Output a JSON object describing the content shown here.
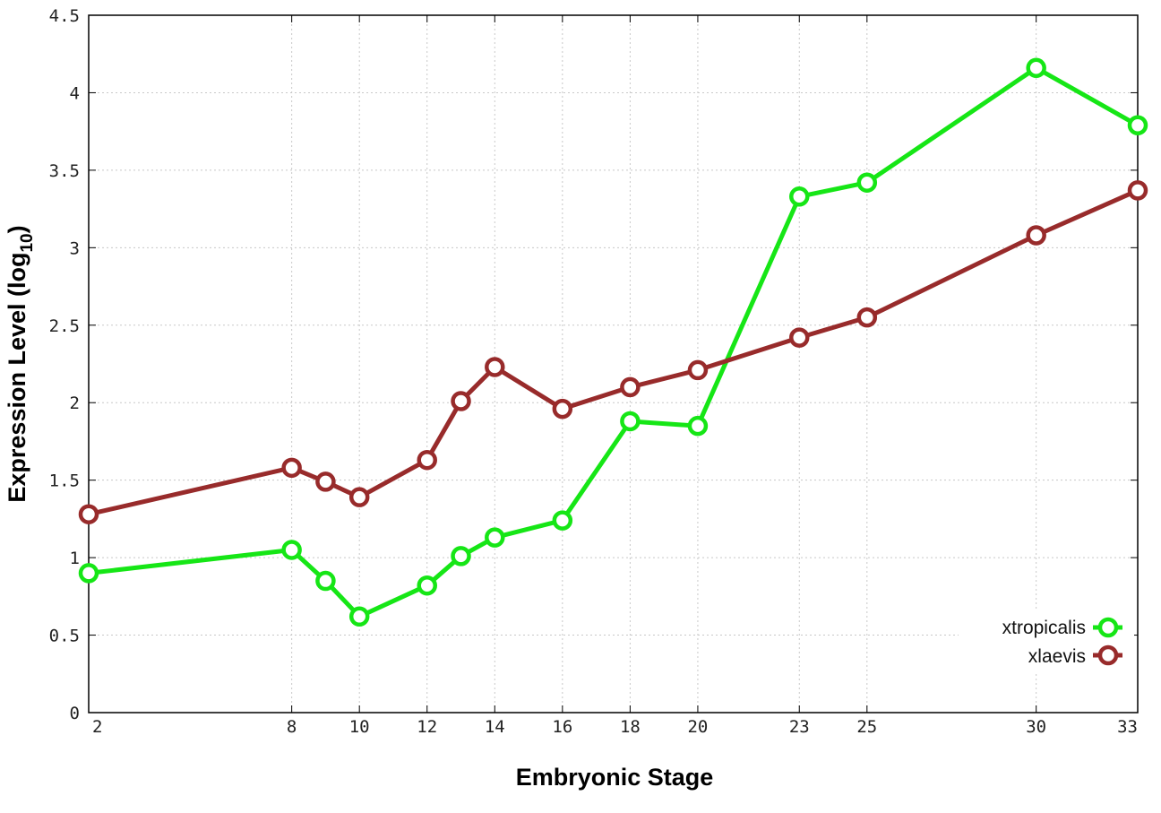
{
  "chart_data": {
    "type": "line",
    "xlabel": "Embryonic Stage",
    "ylabel_main": "Expression Level (log",
    "ylabel_sub": "10",
    "ylabel_close": ")",
    "ylim": [
      0,
      4.5
    ],
    "y_ticks": [
      "0",
      "0.5",
      "1",
      "1.5",
      "2",
      "2.5",
      "3",
      "3.5",
      "4",
      "4.5"
    ],
    "categories": [
      "2",
      "8",
      "9",
      "10",
      "12",
      "13",
      "14",
      "16",
      "18",
      "20",
      "23",
      "25",
      "30",
      "33"
    ],
    "x_tick_labels": [
      "2",
      "8",
      "10",
      "12",
      "14",
      "16",
      "18",
      "20",
      "23",
      "25",
      "30",
      "33"
    ],
    "grid": true,
    "legend_position": "bottom-right",
    "series": [
      {
        "name": "xtropicalis",
        "color": "#16e616",
        "values": [
          0.9,
          1.05,
          0.85,
          0.62,
          0.82,
          1.01,
          1.13,
          1.24,
          1.88,
          1.85,
          3.33,
          3.42,
          4.16,
          3.79
        ]
      },
      {
        "name": "xlaevis",
        "color": "#982b2b",
        "values": [
          1.28,
          1.58,
          1.49,
          1.39,
          1.63,
          2.01,
          2.23,
          1.96,
          2.1,
          2.21,
          2.42,
          2.55,
          3.08,
          3.37
        ]
      }
    ]
  }
}
